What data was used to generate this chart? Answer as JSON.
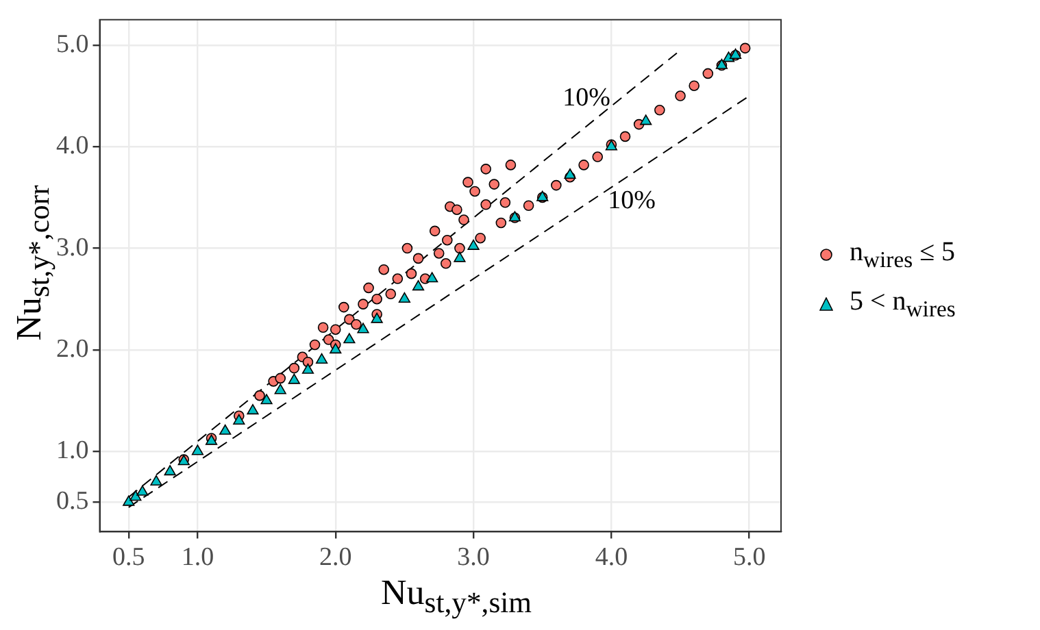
{
  "chart_data": {
    "type": "scatter",
    "xlabel": "Nu$_{st,y*,sim}$",
    "ylabel": "Nu$_{st,y*,corr}$",
    "xlim": [
      0.29,
      5.23
    ],
    "ylim": [
      0.21,
      5.25
    ],
    "xticks": [
      0.5,
      {
        "value": 1,
        "label": "1.0"
      },
      {
        "value": 2,
        "label": "2.0"
      },
      {
        "value": 3,
        "label": "3.0"
      },
      {
        "value": 4,
        "label": "4.0"
      },
      {
        "value": 5,
        "label": "5.0"
      }
    ],
    "yticks": [
      0.5,
      {
        "value": 1,
        "label": "1.0"
      },
      {
        "value": 2,
        "label": "2.0"
      },
      {
        "value": 3,
        "label": "3.0"
      },
      {
        "value": 4,
        "label": "4.0"
      },
      {
        "value": 5,
        "label": "5.0"
      }
    ],
    "grid": true,
    "legend": "right",
    "annotations": [
      "10%",
      "10%"
    ],
    "series": [
      {
        "name": "n$_{wires}$ ≤ 5",
        "type": "scatter",
        "marker": "circle",
        "color": "#f8766d",
        "x": [
          0.9,
          1.1,
          1.3,
          1.45,
          1.55,
          1.6,
          1.7,
          1.76,
          1.8,
          1.85,
          1.91,
          1.95,
          2.0,
          2.06,
          2.1,
          2.15,
          2.2,
          2.24,
          2.3,
          2.35,
          2.4,
          2.45,
          2.52,
          2.55,
          2.6,
          2.65,
          2.72,
          2.75,
          2.81,
          2.83,
          2.88,
          2.9,
          2.93,
          2.96,
          3.01,
          3.05,
          3.09,
          3.09,
          3.15,
          3.2,
          3.23,
          3.27,
          3.3,
          3.4,
          3.5,
          3.6,
          3.7,
          3.8,
          3.9,
          4.0,
          4.1,
          4.2,
          4.35,
          4.5,
          4.6,
          4.7,
          4.8,
          4.9,
          4.97,
          2.3,
          2.0,
          2.8
        ],
        "values": [
          0.92,
          1.13,
          1.35,
          1.55,
          1.69,
          1.72,
          1.82,
          1.93,
          1.88,
          2.05,
          2.22,
          2.1,
          2.2,
          2.42,
          2.3,
          2.25,
          2.45,
          2.61,
          2.5,
          2.79,
          2.55,
          2.7,
          3.0,
          2.75,
          2.9,
          2.7,
          3.17,
          2.95,
          3.08,
          3.41,
          3.38,
          3.0,
          3.28,
          3.65,
          3.56,
          3.1,
          3.78,
          3.43,
          3.63,
          3.25,
          3.45,
          3.82,
          3.3,
          3.42,
          3.5,
          3.62,
          3.7,
          3.82,
          3.9,
          4.02,
          4.1,
          4.22,
          4.36,
          4.5,
          4.6,
          4.72,
          4.8,
          4.9,
          4.97,
          2.35,
          2.05,
          2.85
        ]
      },
      {
        "name": "5 < n$_{wires}$",
        "type": "scatter",
        "marker": "triangle",
        "color": "#00bfc4",
        "x": [
          0.5,
          0.55,
          0.6,
          0.7,
          0.8,
          0.9,
          1.0,
          1.1,
          1.2,
          1.3,
          1.4,
          1.5,
          1.6,
          1.7,
          1.8,
          1.9,
          2.0,
          2.1,
          2.2,
          2.3,
          2.5,
          2.6,
          2.7,
          2.9,
          3.0,
          3.3,
          3.5,
          3.7,
          4.0,
          4.25,
          4.8,
          4.85,
          4.9
        ],
        "values": [
          0.5,
          0.55,
          0.6,
          0.7,
          0.8,
          0.9,
          1.0,
          1.1,
          1.2,
          1.3,
          1.4,
          1.5,
          1.6,
          1.7,
          1.8,
          1.9,
          2.0,
          2.1,
          2.2,
          2.3,
          2.5,
          2.62,
          2.7,
          2.9,
          3.02,
          3.3,
          3.5,
          3.72,
          4.0,
          4.25,
          4.8,
          4.87,
          4.9
        ]
      },
      {
        "type": "line",
        "marker": "none",
        "line_style": "dashed",
        "color": "#000000",
        "x": [
          0.5,
          4.5
        ],
        "values": [
          0.55,
          4.95
        ]
      },
      {
        "type": "line",
        "marker": "none",
        "line_style": "dashed",
        "color": "#000000",
        "x": [
          0.5,
          5.0
        ],
        "values": [
          0.45,
          4.5
        ]
      }
    ]
  }
}
